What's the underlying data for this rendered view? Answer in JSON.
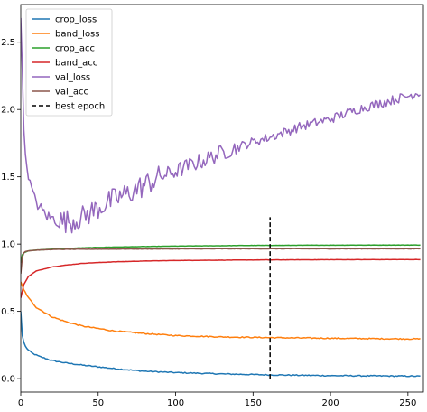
{
  "chart_data": {
    "type": "line",
    "title": "",
    "xlabel": "",
    "ylabel": "",
    "xlim": [
      0,
      260
    ],
    "ylim": [
      -0.1,
      2.78
    ],
    "xticks": [
      0,
      50,
      100,
      150,
      200,
      250
    ],
    "yticks": [
      0.0,
      0.5,
      1.0,
      1.5,
      2.0,
      2.5
    ],
    "ytick_labels": [
      "0.0",
      "0.5",
      "1.0",
      "1.5",
      "2.0",
      "2.5"
    ],
    "grid": false,
    "legend_position": "top-left",
    "series": [
      {
        "name": "crop_loss",
        "color": "#1f77b4",
        "kind": "exp",
        "x": [
          0,
          1,
          2,
          3,
          5,
          8,
          12,
          20,
          30,
          40,
          60,
          80,
          100,
          130,
          160,
          200,
          230,
          258
        ],
        "values": [
          0.5,
          0.32,
          0.27,
          0.24,
          0.21,
          0.185,
          0.165,
          0.135,
          0.115,
          0.1,
          0.075,
          0.055,
          0.045,
          0.035,
          0.028,
          0.022,
          0.02,
          0.018
        ]
      },
      {
        "name": "band_loss",
        "color": "#ff7f0e",
        "kind": "exp",
        "x": [
          0,
          2,
          5,
          10,
          20,
          30,
          40,
          60,
          80,
          100,
          130,
          160,
          200,
          230,
          258
        ],
        "values": [
          0.72,
          0.66,
          0.6,
          0.53,
          0.46,
          0.42,
          0.39,
          0.355,
          0.335,
          0.32,
          0.31,
          0.305,
          0.3,
          0.297,
          0.295
        ]
      },
      {
        "name": "crop_acc",
        "color": "#2ca02c",
        "kind": "sat",
        "x": [
          0,
          1,
          2,
          3,
          5,
          10,
          20,
          40,
          60,
          100,
          150,
          200,
          258
        ],
        "values": [
          0.86,
          0.92,
          0.935,
          0.94,
          0.95,
          0.955,
          0.963,
          0.972,
          0.978,
          0.985,
          0.99,
          0.992,
          0.993
        ]
      },
      {
        "name": "band_acc",
        "color": "#d62728",
        "kind": "sat",
        "x": [
          0,
          2,
          5,
          10,
          20,
          30,
          40,
          60,
          80,
          100,
          150,
          200,
          258
        ],
        "values": [
          0.6,
          0.7,
          0.76,
          0.8,
          0.83,
          0.845,
          0.857,
          0.868,
          0.874,
          0.878,
          0.882,
          0.884,
          0.885
        ]
      },
      {
        "name": "val_loss",
        "color": "#9467bd",
        "kind": "val",
        "x": [
          0,
          1,
          2,
          3,
          5,
          8,
          12,
          18,
          25,
          32,
          40,
          50,
          60,
          70,
          80,
          90,
          100,
          110,
          120,
          130,
          140,
          150,
          160,
          170,
          180,
          190,
          200,
          210,
          220,
          230,
          240,
          250,
          258
        ],
        "values": [
          2.68,
          2.3,
          1.85,
          1.65,
          1.5,
          1.38,
          1.27,
          1.2,
          1.17,
          1.17,
          1.2,
          1.27,
          1.33,
          1.38,
          1.44,
          1.5,
          1.54,
          1.59,
          1.63,
          1.68,
          1.72,
          1.76,
          1.79,
          1.83,
          1.87,
          1.9,
          1.93,
          1.97,
          2.01,
          2.04,
          2.07,
          2.1,
          2.13
        ]
      },
      {
        "name": "val_acc",
        "color": "#8c564b",
        "kind": "flat",
        "x": [
          0,
          1,
          2,
          3,
          5,
          10,
          20,
          40,
          60,
          100,
          150,
          200,
          258
        ],
        "values": [
          0.78,
          0.9,
          0.935,
          0.945,
          0.95,
          0.955,
          0.96,
          0.962,
          0.963,
          0.964,
          0.965,
          0.965,
          0.965
        ]
      }
    ],
    "annotations": [
      {
        "name": "best epoch",
        "type": "vline",
        "color": "#000000",
        "style": "dashed",
        "x": 161,
        "y_range": [
          0.0,
          1.2
        ]
      }
    ]
  }
}
